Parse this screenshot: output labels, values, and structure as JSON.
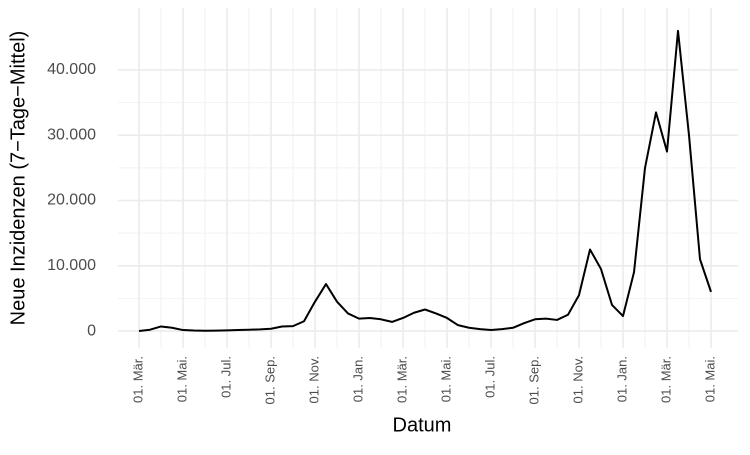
{
  "chart_data": {
    "type": "line",
    "x_label": "Datum",
    "y_label": "Neue Inzidenzen (7−Tage−Mittel)",
    "categories": [
      "01. Mär.",
      null,
      null,
      null,
      "01. Mai.",
      null,
      null,
      null,
      "01. Jul.",
      null,
      null,
      null,
      "01. Sep.",
      null,
      null,
      null,
      "01. Nov.",
      null,
      null,
      null,
      "01. Jan.",
      null,
      null,
      null,
      "01. Mär.",
      null,
      null,
      null,
      "01. Mai.",
      null,
      null,
      null,
      "01. Jul.",
      null,
      null,
      null,
      "01. Sep.",
      null,
      null,
      null,
      "01. Nov.",
      null,
      null,
      null,
      "01. Jan.",
      null,
      null,
      null,
      "01. Mär.",
      null,
      null,
      null,
      "01. Mai."
    ],
    "series": [
      {
        "color": "#000000",
        "values": [
          0,
          200,
          700,
          500,
          150,
          80,
          50,
          60,
          100,
          150,
          200,
          250,
          350,
          700,
          750,
          1500,
          4500,
          7200,
          4500,
          2700,
          1900,
          2000,
          1800,
          1400,
          2000,
          2800,
          3300,
          2700,
          2000,
          900,
          500,
          300,
          150,
          300,
          500,
          1200,
          1800,
          1900,
          1700,
          2500,
          5500,
          12500,
          9500,
          4000,
          2300,
          9000,
          25000,
          33500,
          27500,
          46000,
          30000,
          11000,
          6000
        ]
      }
    ],
    "ylim": [
      -2600,
      49500
    ],
    "yticks": [
      0,
      {
        "value": 10000,
        "label": "10.000"
      },
      {
        "value": 20000,
        "label": "20.000"
      },
      {
        "value": 30000,
        "label": "30.000"
      },
      {
        "value": 40000,
        "label": "40.000"
      }
    ],
    "grid": true
  }
}
